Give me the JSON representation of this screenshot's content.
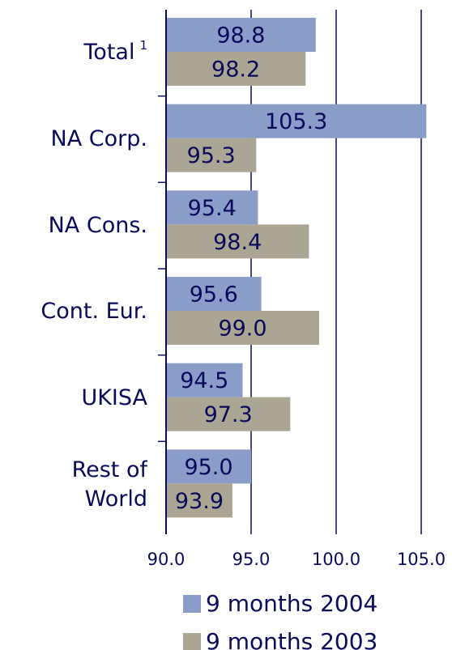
{
  "chart_data": {
    "type": "hbar",
    "categories": [
      "Total",
      "NA Corp.",
      "NA Cons.",
      "Cont. Eur.",
      "UKISA",
      "Rest of World"
    ],
    "total_footnote_mark": "1",
    "series": [
      {
        "name": "9 months 2004",
        "color": "#8a9dc8",
        "values": [
          98.8,
          105.3,
          95.4,
          95.6,
          94.5,
          95.0
        ],
        "value_labels": [
          "98.8",
          "105.3",
          "95.4",
          "95.6",
          "94.5",
          "95.0"
        ]
      },
      {
        "name": "9 months 2003",
        "color": "#aaa693",
        "values": [
          98.2,
          95.3,
          98.4,
          99.0,
          97.3,
          93.9
        ],
        "value_labels": [
          "98.2",
          "95.3",
          "98.4",
          "99.0",
          "97.3",
          "93.9"
        ]
      }
    ],
    "xlim": [
      90,
      105
    ],
    "xticks": [
      {
        "value": 90,
        "label": "90.0"
      },
      {
        "value": 95,
        "label": "95.0"
      },
      {
        "value": 100,
        "label": "100.0"
      },
      {
        "value": 105,
        "label": "105.0"
      }
    ],
    "grid": true
  }
}
